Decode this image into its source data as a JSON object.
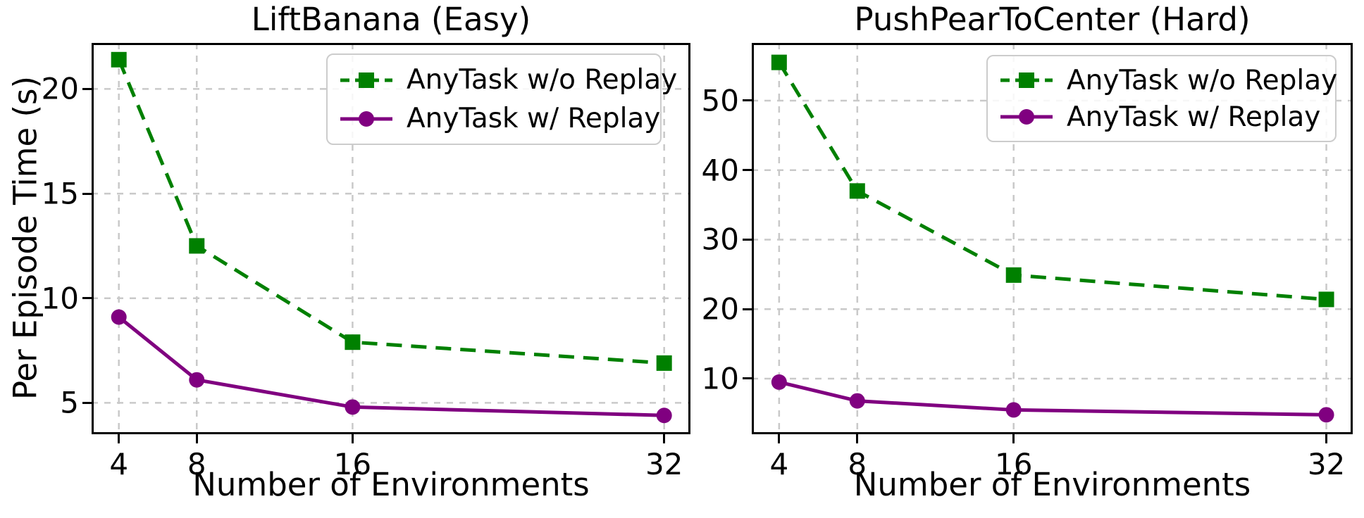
{
  "figure": {
    "background": "#ffffff"
  },
  "colors": {
    "grid": "#c9c9c9",
    "spine": "#000000",
    "text": "#000000",
    "legend_border": "#cccccc",
    "series_green": "#008000",
    "series_purple": "#800080"
  },
  "chart_data": [
    {
      "type": "line",
      "title": "LiftBanana (Easy)",
      "xlabel": "Number of Environments",
      "ylabel": "Per Episode Time (s)",
      "x": [
        4,
        8,
        16,
        32
      ],
      "x_tick_labels": [
        "4",
        "8",
        "16",
        "32"
      ],
      "y_ticks": [
        5,
        10,
        15,
        20
      ],
      "xlim": [
        2.6,
        33.35
      ],
      "ylim": [
        3.5,
        22.2
      ],
      "grid": true,
      "legend_position": "upper right",
      "series": [
        {
          "name": "AnyTask w/o Replay",
          "values": [
            21.4,
            12.5,
            7.9,
            6.9
          ],
          "color": "#008000",
          "line_style": "dashed",
          "marker": "square"
        },
        {
          "name": "AnyTask w/ Replay",
          "values": [
            9.1,
            6.1,
            4.8,
            4.4
          ],
          "color": "#800080",
          "line_style": "solid",
          "marker": "circle"
        }
      ]
    },
    {
      "type": "line",
      "title": "PushPearToCenter (Hard)",
      "xlabel": "Number of Environments",
      "ylabel": "",
      "x": [
        4,
        8,
        16,
        32
      ],
      "x_tick_labels": [
        "4",
        "8",
        "16",
        "32"
      ],
      "y_ticks": [
        10,
        20,
        30,
        40,
        50
      ],
      "xlim": [
        2.6,
        33.35
      ],
      "ylim": [
        2.0,
        58.3
      ],
      "grid": true,
      "legend_position": "upper right",
      "series": [
        {
          "name": "AnyTask w/o Replay",
          "values": [
            55.5,
            37.0,
            24.9,
            21.4
          ],
          "color": "#008000",
          "line_style": "dashed",
          "marker": "square"
        },
        {
          "name": "AnyTask w/ Replay",
          "values": [
            9.5,
            6.8,
            5.5,
            4.8
          ],
          "color": "#800080",
          "line_style": "solid",
          "marker": "circle"
        }
      ]
    }
  ]
}
